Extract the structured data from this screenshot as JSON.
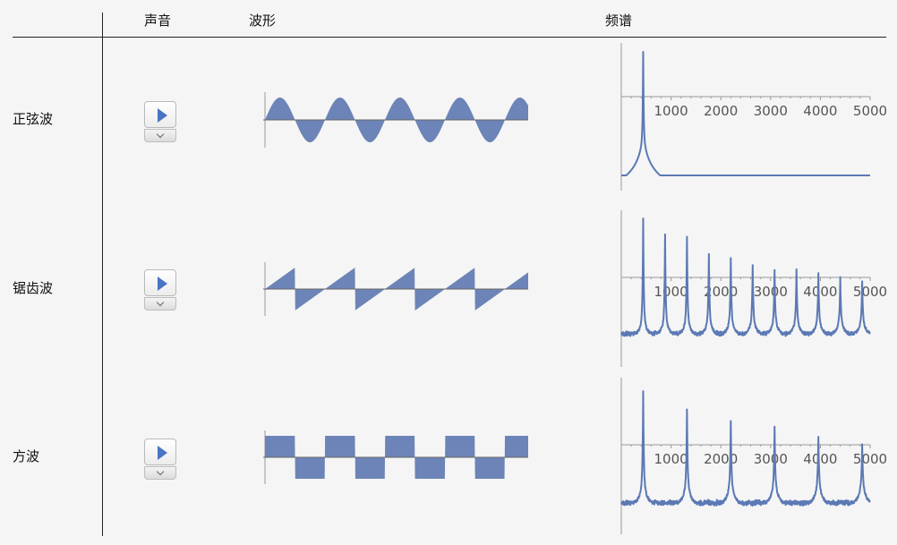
{
  "table": {
    "headers": {
      "sound": "声音",
      "waveform": "波形",
      "spectrum": "频谱"
    },
    "rows": [
      {
        "label": "正弦波",
        "wave": "sine"
      },
      {
        "label": "锯齿波",
        "wave": "sawtooth"
      },
      {
        "label": "方波",
        "wave": "square"
      }
    ]
  },
  "colors": {
    "plot": "#6c84b7",
    "spectrum_line": "#5b79b4",
    "axis": "#999999"
  },
  "icons": {
    "play": "play-triangle-icon",
    "menu": "chevron-down-icon"
  },
  "spectrum_ticks": [
    "1000",
    "2000",
    "3000",
    "4000",
    "5000"
  ]
}
